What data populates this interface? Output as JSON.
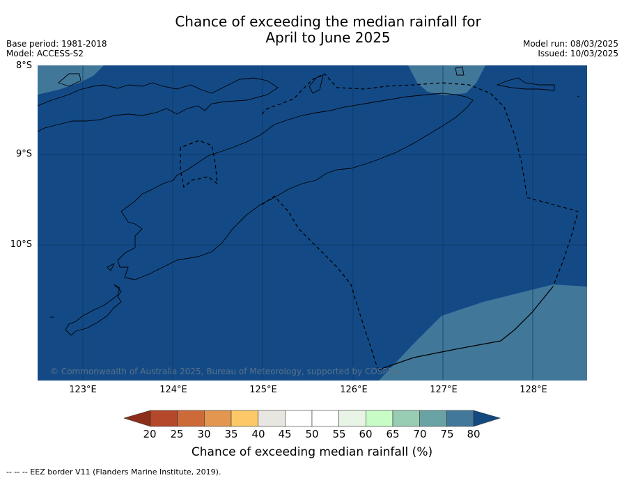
{
  "title_line1": "Chance of exceeding the median rainfall for",
  "title_line2": "April to June 2025",
  "meta_left": [
    "Base period: 1981-2018",
    "Model: ACCESS-S2"
  ],
  "meta_right": [
    "Model run: 08/03/2025",
    "Issued: 10/03/2025"
  ],
  "lat_labels": [
    "8°S",
    "9°S",
    "10°S"
  ],
  "lon_labels": [
    "123°E",
    "124°E",
    "125°E",
    "126°E",
    "127°E",
    "128°E"
  ],
  "copyright": "© Commonwealth of Australia 2025, Bureau of Meteorology, supported by COSPPac",
  "colorbar": {
    "label": "Chance of exceeding median rainfall (%)",
    "ticks": [
      "20",
      "25",
      "30",
      "35",
      "40",
      "45",
      "50",
      "55",
      "60",
      "65",
      "70",
      "75",
      "80"
    ],
    "colors": [
      "#8b2e1a",
      "#b5482a",
      "#cc6a3a",
      "#e29650",
      "#fdc968",
      "#e8e6e0",
      "#ffffff",
      "#ffffff",
      "#e8f4e6",
      "#c7fcc7",
      "#98cdb4",
      "#6aa3a4",
      "#42789a",
      "#13497f"
    ]
  },
  "map_colors": {
    "high": "#134a86",
    "mid": "#41789a",
    "grid": "#0e3560"
  },
  "footnote": "-- -- -- EEZ border V11 (Flanders Marine Institute, 2019)."
}
